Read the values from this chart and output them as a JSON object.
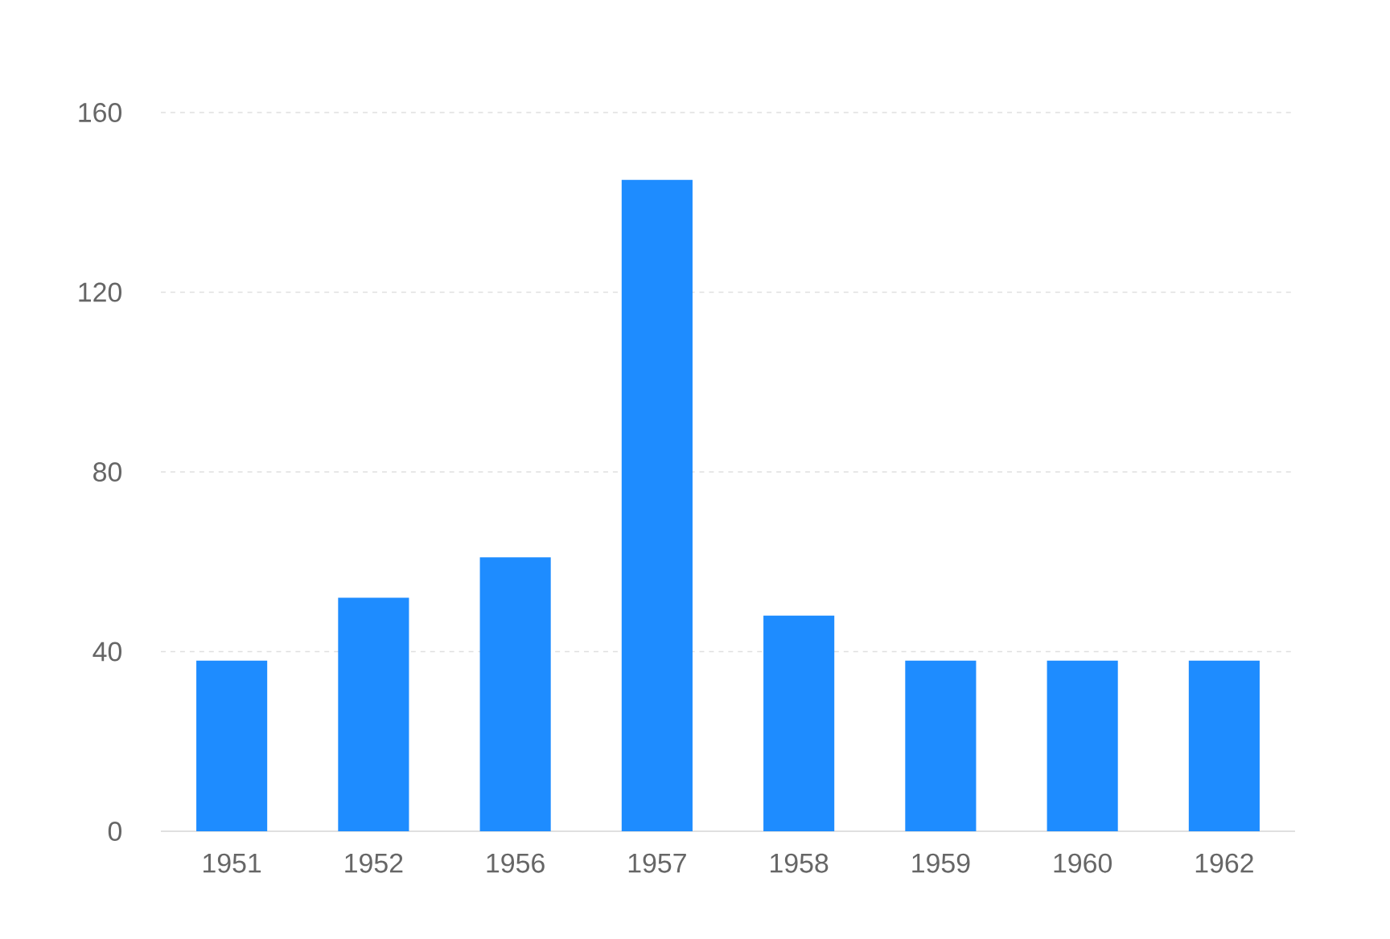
{
  "chart_data": {
    "type": "bar",
    "categories": [
      "1951",
      "1952",
      "1956",
      "1957",
      "1958",
      "1959",
      "1960",
      "1962"
    ],
    "values": [
      38,
      52,
      61,
      145,
      48,
      38,
      38,
      38
    ],
    "color": "#1e8cff",
    "ylim": [
      0,
      160
    ],
    "yticks": [
      0,
      40,
      80,
      120,
      160
    ],
    "grid": "y"
  }
}
